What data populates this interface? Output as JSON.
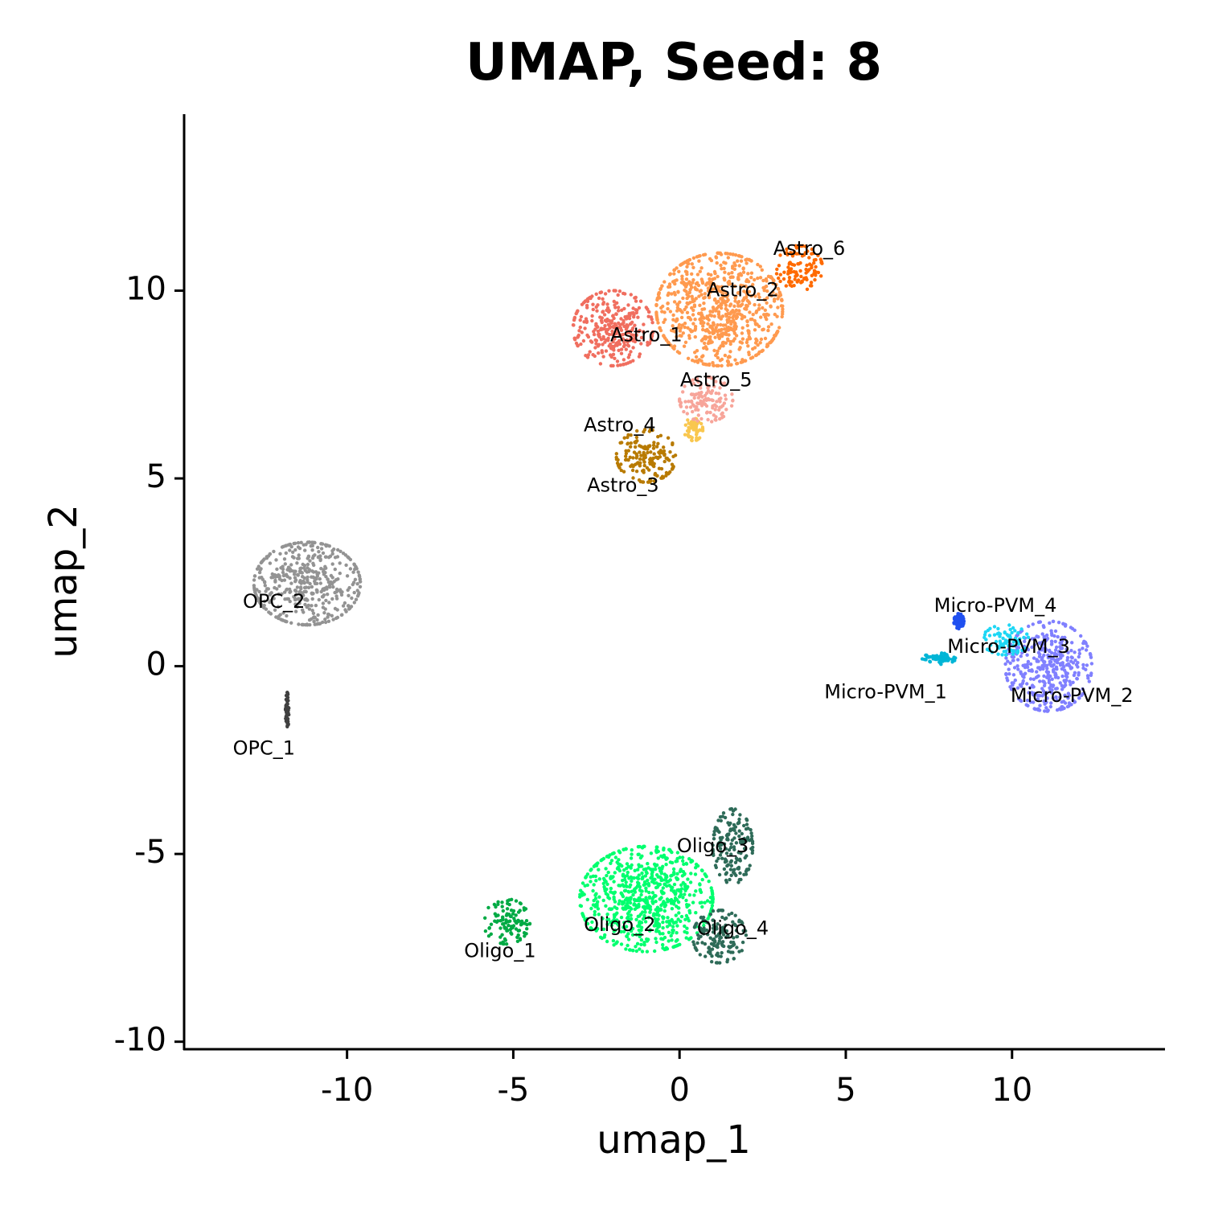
{
  "chart_data": {
    "type": "scatter",
    "title": "UMAP, Seed: 8",
    "xlabel": "umap_1",
    "ylabel": "umap_2",
    "xlim": [
      -14.9,
      14.6
    ],
    "ylim": [
      -10.2,
      14.7
    ],
    "xticks": [
      -10,
      -5,
      0,
      5,
      10
    ],
    "yticks": [
      -10,
      -5,
      0,
      5,
      10
    ],
    "xtick_labels": [
      "-10",
      "-5",
      "0",
      "5",
      "10"
    ],
    "ytick_labels": [
      "-10",
      "-5",
      "0",
      "5",
      "10"
    ],
    "grid": false,
    "legend": "none",
    "clusters": [
      {
        "name": "Astro_1",
        "color": "#F06E5F",
        "label_at": [
          -1.0,
          8.8
        ],
        "center": [
          -2.0,
          9.0
        ],
        "spread": [
          1.2,
          1.0
        ]
      },
      {
        "name": "Astro_2",
        "color": "#FF9A4F",
        "label_at": [
          1.9,
          10.0
        ],
        "center": [
          1.2,
          9.5
        ],
        "spread": [
          1.9,
          1.5
        ]
      },
      {
        "name": "Astro_3",
        "color": "#B87A00",
        "label_at": [
          -1.7,
          4.8
        ],
        "center": [
          -1.0,
          5.6
        ],
        "spread": [
          0.9,
          0.7
        ]
      },
      {
        "name": "Astro_4",
        "color": "#F9C74F",
        "label_at": [
          -1.8,
          6.4
        ],
        "center": [
          0.4,
          6.3
        ],
        "spread": [
          0.3,
          0.3
        ]
      },
      {
        "name": "Astro_5",
        "color": "#F7A59A",
        "label_at": [
          1.1,
          7.6
        ],
        "center": [
          0.8,
          7.1
        ],
        "spread": [
          0.8,
          0.6
        ]
      },
      {
        "name": "Astro_6",
        "color": "#FF6A00",
        "label_at": [
          3.9,
          11.1
        ],
        "center": [
          3.6,
          10.6
        ],
        "spread": [
          0.7,
          0.6
        ]
      },
      {
        "name": "OPC_1",
        "color": "#404040",
        "label_at": [
          -12.5,
          -2.2
        ],
        "center": [
          -11.8,
          -1.2
        ],
        "spread": [
          0.05,
          0.5
        ]
      },
      {
        "name": "OPC_2",
        "color": "#939393",
        "label_at": [
          -12.2,
          1.7
        ],
        "center": [
          -11.2,
          2.2
        ],
        "spread": [
          1.6,
          1.1
        ]
      },
      {
        "name": "Oligo_1",
        "color": "#00AA44",
        "label_at": [
          -5.4,
          -7.6
        ],
        "center": [
          -5.2,
          -6.8
        ],
        "spread": [
          0.7,
          0.6
        ]
      },
      {
        "name": "Oligo_2",
        "color": "#00FF6E",
        "label_at": [
          -1.8,
          -6.9
        ],
        "center": [
          -1.0,
          -6.2
        ],
        "spread": [
          2.0,
          1.4
        ]
      },
      {
        "name": "Oligo_3",
        "color": "#2E6B58",
        "label_at": [
          1.0,
          -4.8
        ],
        "center": [
          1.6,
          -4.8
        ],
        "spread": [
          0.6,
          1.0
        ]
      },
      {
        "name": "Oligo_4",
        "color": "#2E6B58",
        "label_at": [
          1.6,
          -7.0
        ],
        "center": [
          1.2,
          -7.2
        ],
        "spread": [
          0.8,
          0.7
        ]
      },
      {
        "name": "Micro-PVM_1",
        "color": "#00B5D6",
        "label_at": [
          6.2,
          -0.7
        ],
        "center": [
          7.8,
          0.2
        ],
        "spread": [
          0.5,
          0.15
        ]
      },
      {
        "name": "Micro-PVM_2",
        "color": "#8080FF",
        "label_at": [
          11.8,
          -0.8
        ],
        "center": [
          11.1,
          0.0
        ],
        "spread": [
          1.3,
          1.2
        ]
      },
      {
        "name": "Micro-PVM_3",
        "color": "#1ED7F5",
        "label_at": [
          9.9,
          0.5
        ],
        "center": [
          9.8,
          0.7
        ],
        "spread": [
          0.7,
          0.4
        ]
      },
      {
        "name": "Micro-PVM_4",
        "color": "#2050F0",
        "label_at": [
          9.5,
          1.6
        ],
        "center": [
          8.4,
          1.2
        ],
        "spread": [
          0.15,
          0.2
        ]
      }
    ]
  }
}
